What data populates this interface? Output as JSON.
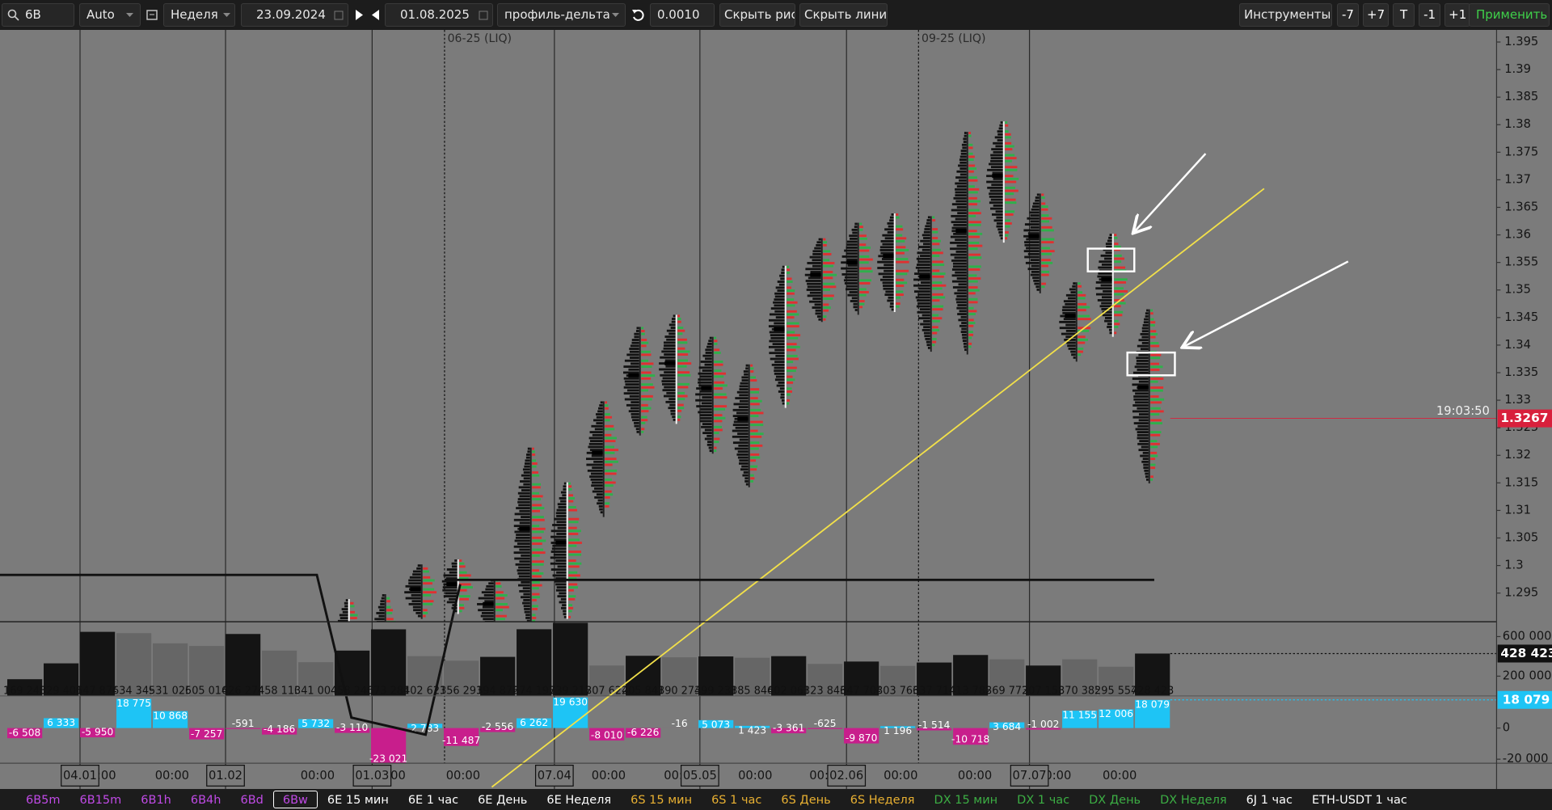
{
  "toolbar": {
    "symbol": "6B",
    "mode": "Auto",
    "period": "Неделя",
    "date_from": "23.09.2024",
    "date_to": "01.08.2025",
    "view": "профиль-дельта",
    "step": "0.0010",
    "hide_drawings": "Скрыть рис.",
    "hide_lines": "Скрыть линии",
    "tools": "Инструменты",
    "buttons": [
      "-7",
      "+7",
      "T",
      "-1",
      "+1"
    ],
    "apply": "Применить"
  },
  "chart_data": {
    "type": "profile",
    "xlim": [
      -0.68,
      40.46
    ],
    "ylim": [
      1.2898,
      1.3972
    ],
    "yticks": [
      1.295,
      1.3,
      1.305,
      1.31,
      1.315,
      1.32,
      1.325,
      1.33,
      1.335,
      1.34,
      1.345,
      1.35,
      1.355,
      1.36,
      1.365,
      1.37,
      1.375,
      1.38,
      1.385,
      1.39,
      1.395
    ],
    "highs": [
      null,
      null,
      null,
      null,
      null,
      null,
      null,
      null,
      null,
      1.2939,
      1.2948,
      1.3002,
      1.3011,
      1.2975,
      1.3214,
      1.3151,
      1.3298,
      1.3433,
      1.3455,
      1.3415,
      1.3365,
      1.3544,
      1.3594,
      1.3622,
      1.3639,
      1.3634,
      1.3787,
      1.3806,
      1.3675,
      1.3514,
      1.3602,
      1.3465
    ],
    "lows": [
      null,
      null,
      null,
      null,
      null,
      null,
      null,
      null,
      null,
      1.275,
      1.27,
      1.2903,
      1.2912,
      1.2877,
      1.2885,
      1.2903,
      1.3088,
      1.3236,
      1.3257,
      1.3203,
      1.3142,
      1.3286,
      1.3442,
      1.3455,
      1.346,
      1.3388,
      1.3383,
      1.3586,
      1.3494,
      1.337,
      1.3415,
      1.3149
    ],
    "volume": {
      "values": [
        169240,
        329401,
        647874,
        634349,
        531026,
        505014,
        626274,
        458110,
        341004,
        458240,
        673281,
        402621,
        356291,
        394872,
        674193,
        739217,
        307622,
        405841,
        390274,
        399231,
        385846,
        402061,
        323846,
        347704,
        303766,
        337714,
        413782,
        369772,
        307150,
        370385,
        295557,
        428423
      ],
      "value_labels": [
        "169 240",
        "329 401",
        "647 874",
        "634 349",
        "531 026",
        "505 014",
        "626 274",
        "458 110",
        "341 004",
        "458 240",
        "673 281",
        "402 621",
        "356 291",
        "394 872",
        "674 193",
        "739 217",
        "307 622",
        "405 841",
        "390 274",
        "399 231",
        "385 846",
        "402 061",
        "323 846",
        "347 704",
        "303 766",
        "337 714",
        "413 782",
        "369 772",
        "307 150",
        "370 385",
        "295 557",
        "428 423"
      ],
      "colors": [
        "#141414",
        "#141414",
        "#141414",
        "#666666",
        "#666666",
        "#666666",
        "#141414",
        "#666666",
        "#666666",
        "#141414",
        "#141414",
        "#666666",
        "#666666",
        "#141414",
        "#141414",
        "#141414",
        "#666666",
        "#141414",
        "#666666",
        "#141414",
        "#666666",
        "#141414",
        "#666666",
        "#141414",
        "#666666",
        "#141414",
        "#141414",
        "#666666",
        "#141414",
        "#666666",
        "#666666",
        "#141414"
      ],
      "ylim": [
        0,
        750000
      ],
      "yticks": [
        {
          "value": 600000,
          "label": "600 000"
        },
        {
          "value": 200000,
          "label": "200 000"
        }
      ]
    },
    "delta": {
      "values": [
        -6508,
        6333,
        -5950,
        18775,
        10868,
        -7257,
        -591,
        -4186,
        5732,
        -3110,
        -23021,
        2783,
        -11487,
        -2556,
        6262,
        19630,
        -8010,
        -6226,
        -16,
        5073,
        1423,
        -3361,
        -625,
        -9870,
        1196,
        -1514,
        -10718,
        3684,
        -1002,
        11155,
        12006,
        18079
      ],
      "value_labels": [
        "-6 508",
        "6 333",
        "-5 950",
        "18 775",
        "10 868",
        "-7 257",
        "-591",
        "-4 186",
        "5 732",
        "-3 110",
        "-23 021",
        "2 783",
        "-11 487",
        "-2 556",
        "6 262",
        "19 630",
        "-8 010",
        "-6 226",
        "-16",
        "5 073",
        "1 423",
        "-3 361",
        "-625",
        "-9 870",
        "1 196",
        "-1 514",
        "-10 718",
        "3 684",
        "-1 002",
        "11 155",
        "12 006",
        "18 079"
      ],
      "positive_color": "#1ec4f5",
      "negative_color": "#c81e8c",
      "ylim": [
        -22600,
        20600
      ],
      "yticks": [
        0,
        {
          "value": -20000,
          "label": "-20 000"
        }
      ]
    },
    "time_labels": [
      {
        "x": 2.04,
        "label": "00:00"
      },
      {
        "x": 4.05,
        "label": "00:00"
      },
      {
        "x": 8.05,
        "label": "00:00"
      },
      {
        "x": 10.0,
        "label": "00:00"
      },
      {
        "x": 12.05,
        "label": "00:00"
      },
      {
        "x": 16.05,
        "label": "00:00"
      },
      {
        "x": 18.04,
        "label": "00:00"
      },
      {
        "x": 20.08,
        "label": "00:00"
      },
      {
        "x": 22.04,
        "label": "00:00"
      },
      {
        "x": 24.08,
        "label": "00:00"
      },
      {
        "x": 26.12,
        "label": "00:00"
      },
      {
        "x": 28.3,
        "label": "00:00"
      },
      {
        "x": 30.1,
        "label": "00:00"
      },
      {
        "x": 1.52,
        "label": "04.01",
        "boxed": true
      },
      {
        "x": 5.52,
        "label": "01.02",
        "boxed": true
      },
      {
        "x": 9.55,
        "label": "01.03",
        "boxed": true
      },
      {
        "x": 14.56,
        "label": "07.04",
        "boxed": true
      },
      {
        "x": 18.56,
        "label": "05.05",
        "boxed": true
      },
      {
        "x": 22.59,
        "label": "02.06",
        "boxed": true
      },
      {
        "x": 27.62,
        "label": "07.07",
        "boxed": true
      }
    ],
    "contracts": [
      {
        "x": 11.54,
        "label": "06-25 (LIQ)"
      },
      {
        "x": 24.57,
        "label": "09-25 (LIQ)"
      }
    ],
    "last_price": {
      "value": 1.3267,
      "time": "19:03:50",
      "color": "#d8203c"
    },
    "lines": [
      {
        "x": [
          12.84,
          34.07
        ],
        "y": [
          1.2598,
          1.3684
        ],
        "color": "#f2e04a"
      },
      {
        "x": [
          -0.68,
          8.03,
          8.98,
          11.02,
          11.97
        ],
        "y": [
          1.2983,
          1.2983,
          1.2724,
          1.2693,
          1.2966
        ],
        "color": "#111111"
      },
      {
        "x": [
          11.54,
          31.05
        ],
        "y": [
          1.2974,
          1.2974
        ],
        "color": "#111111"
      }
    ]
  },
  "tabs": [
    {
      "label": "6B5m",
      "color": "#c04ae6"
    },
    {
      "label": "6B15m",
      "color": "#c04ae6"
    },
    {
      "label": "6B1h",
      "color": "#c04ae6"
    },
    {
      "label": "6B4h",
      "color": "#c04ae6"
    },
    {
      "label": "6Bd",
      "color": "#c04ae6"
    },
    {
      "label": "6Bw",
      "color": "#c04ae6",
      "active": true
    },
    {
      "label": "6E 15 мин",
      "color": "#ffffff"
    },
    {
      "label": "6E 1 час",
      "color": "#ffffff"
    },
    {
      "label": "6E День",
      "color": "#ffffff"
    },
    {
      "label": "6E Неделя",
      "color": "#ffffff"
    },
    {
      "label": "6S 15 мин",
      "color": "#e8b032"
    },
    {
      "label": "6S 1 час",
      "color": "#e8b032"
    },
    {
      "label": "6S День",
      "color": "#e8b032"
    },
    {
      "label": "6S Неделя",
      "color": "#e8b032"
    },
    {
      "label": "DX 15 мин",
      "color": "#3cae44"
    },
    {
      "label": "DX 1 час",
      "color": "#3cae44"
    },
    {
      "label": "DX День",
      "color": "#3cae44"
    },
    {
      "label": "DX Неделя",
      "color": "#3cae44"
    },
    {
      "label": "6J 1 час",
      "color": "#ffffff"
    },
    {
      "label": "ETH-USDT 1 час",
      "color": "#ffffff"
    }
  ]
}
